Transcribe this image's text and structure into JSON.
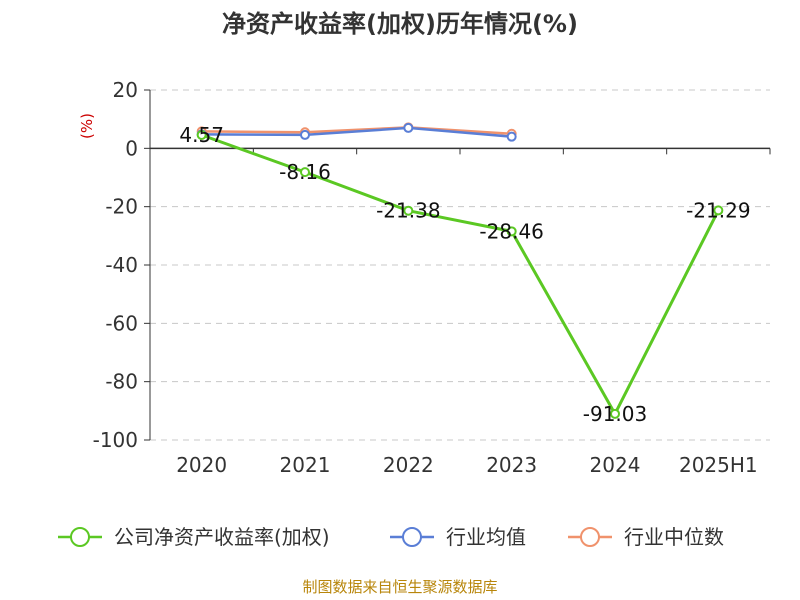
{
  "chart_data": {
    "type": "line",
    "title": "净资产收益率(加权)历年情况(%)",
    "unit_label": "(%)",
    "categories": [
      "2020",
      "2021",
      "2022",
      "2023",
      "2024",
      "2025H1"
    ],
    "ylim": [
      -100,
      20
    ],
    "yticks": [
      20,
      0,
      -20,
      -40,
      -60,
      -80,
      -100
    ],
    "grid": true,
    "legend_position": "bottom",
    "series": [
      {
        "name": "公司净资产收益率(加权)",
        "color": "#5bc823",
        "values": [
          4.57,
          -8.16,
          -21.38,
          -28.46,
          -91.03,
          -21.29
        ],
        "labels": [
          "4.57",
          "-8.16",
          "-21.38",
          "-28.46",
          "-91.03",
          "-21.29"
        ]
      },
      {
        "name": "行业均值",
        "color": "#5a7ed6",
        "values": [
          4.8,
          4.6,
          7.0,
          4.0,
          null,
          null
        ]
      },
      {
        "name": "行业中位数",
        "color": "#f0926c",
        "values": [
          5.8,
          5.5,
          7.2,
          5.0,
          null,
          null
        ]
      }
    ],
    "source": "制图数据来自恒生聚源数据库"
  }
}
